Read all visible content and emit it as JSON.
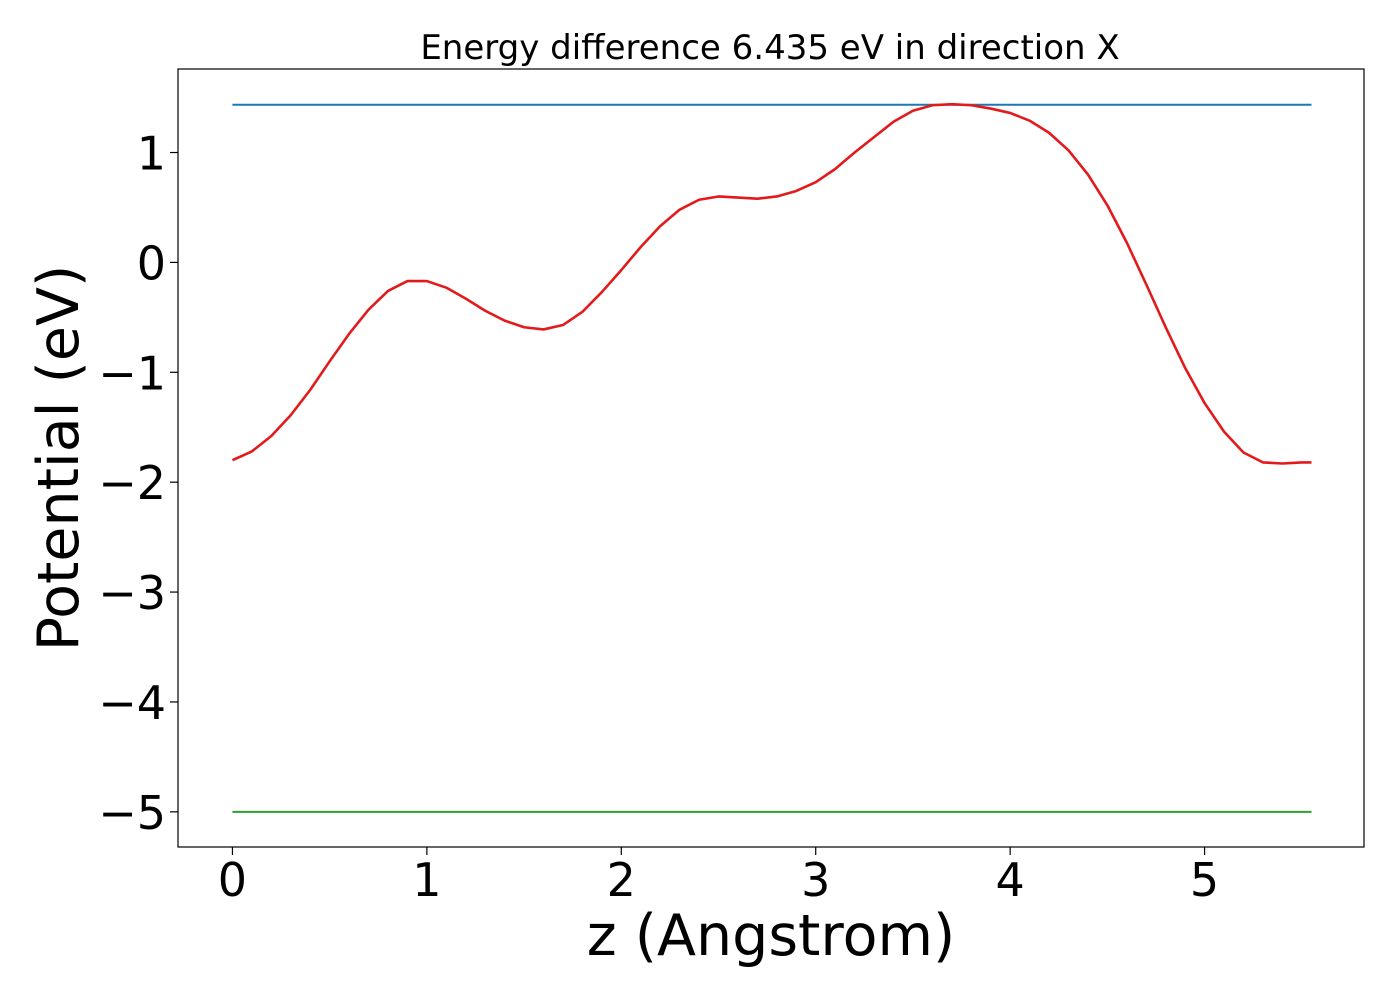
{
  "chart_data": {
    "type": "line",
    "title": "Energy difference 6.435 eV in direction X",
    "xlabel": "z (Angstrom)",
    "ylabel": "Potential (eV)",
    "xlim": [
      -0.28,
      5.82
    ],
    "ylim": [
      -5.32,
      1.76
    ],
    "xticks": [
      0,
      1,
      2,
      3,
      4,
      5
    ],
    "xtick_labels": [
      "0",
      "1",
      "2",
      "3",
      "4",
      "5"
    ],
    "yticks": [
      1,
      0,
      -1,
      -2,
      -3,
      -4,
      -5
    ],
    "ytick_labels": [
      "1",
      "0",
      "−1",
      "−2",
      "−3",
      "−4",
      "−5"
    ],
    "grid": false,
    "legend": "none",
    "series": [
      {
        "color": "#1f77b4",
        "x": [
          0,
          5.55
        ],
        "y": [
          1.435,
          1.435
        ]
      },
      {
        "color": "#2ca02c",
        "x": [
          0,
          5.55
        ],
        "y": [
          -5.0,
          -5.0
        ]
      },
      {
        "color": "#e31a1c",
        "x": [
          0,
          0.1,
          0.2,
          0.3,
          0.4,
          0.5,
          0.6,
          0.7,
          0.8,
          0.9,
          1.0,
          1.1,
          1.2,
          1.3,
          1.4,
          1.5,
          1.6,
          1.7,
          1.8,
          1.9,
          2.0,
          2.1,
          2.2,
          2.3,
          2.4,
          2.5,
          2.6,
          2.7,
          2.8,
          2.9,
          3.0,
          3.1,
          3.2,
          3.3,
          3.4,
          3.5,
          3.6,
          3.7,
          3.8,
          3.9,
          4.0,
          4.1,
          4.2,
          4.3,
          4.4,
          4.5,
          4.6,
          4.7,
          4.8,
          4.9,
          5.0,
          5.1,
          5.2,
          5.3,
          5.4,
          5.5,
          5.55
        ],
        "y": [
          -1.8,
          -1.72,
          -1.58,
          -1.39,
          -1.16,
          -0.9,
          -0.65,
          -0.43,
          -0.26,
          -0.17,
          -0.17,
          -0.23,
          -0.33,
          -0.44,
          -0.53,
          -0.59,
          -0.61,
          -0.57,
          -0.45,
          -0.27,
          -0.07,
          0.14,
          0.33,
          0.48,
          0.57,
          0.6,
          0.59,
          0.58,
          0.6,
          0.65,
          0.73,
          0.85,
          1.0,
          1.14,
          1.28,
          1.38,
          1.43,
          1.44,
          1.43,
          1.4,
          1.36,
          1.29,
          1.18,
          1.02,
          0.8,
          0.52,
          0.18,
          -0.2,
          -0.59,
          -0.96,
          -1.28,
          -1.54,
          -1.73,
          -1.82,
          -1.83,
          -1.82,
          -1.82
        ]
      }
    ]
  }
}
